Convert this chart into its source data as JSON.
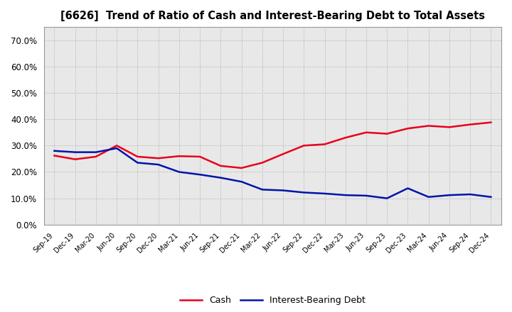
{
  "title": "[6626]  Trend of Ratio of Cash and Interest-Bearing Debt to Total Assets",
  "x_labels": [
    "Sep-19",
    "Dec-19",
    "Mar-20",
    "Jun-20",
    "Sep-20",
    "Dec-20",
    "Mar-21",
    "Jun-21",
    "Sep-21",
    "Dec-21",
    "Mar-22",
    "Jun-22",
    "Sep-22",
    "Dec-22",
    "Mar-23",
    "Jun-23",
    "Sep-23",
    "Dec-23",
    "Mar-24",
    "Jun-24",
    "Sep-24",
    "Dec-24"
  ],
  "cash": [
    0.262,
    0.248,
    0.258,
    0.3,
    0.258,
    0.252,
    0.26,
    0.258,
    0.223,
    0.215,
    0.235,
    0.268,
    0.3,
    0.305,
    0.33,
    0.35,
    0.345,
    0.365,
    0.375,
    0.37,
    0.38,
    0.388
  ],
  "debt": [
    0.28,
    0.275,
    0.275,
    0.29,
    0.235,
    0.228,
    0.2,
    0.19,
    0.178,
    0.163,
    0.133,
    0.13,
    0.122,
    0.118,
    0.112,
    0.11,
    0.1,
    0.138,
    0.105,
    0.112,
    0.115,
    0.105
  ],
  "cash_color": "#e8001c",
  "debt_color": "#0014a8",
  "ylim": [
    0.0,
    0.75
  ],
  "yticks": [
    0.0,
    0.1,
    0.2,
    0.3,
    0.4,
    0.5,
    0.6,
    0.7
  ],
  "ytick_labels": [
    "0.0%",
    "10.0%",
    "20.0%",
    "30.0%",
    "40.0%",
    "50.0%",
    "60.0%",
    "70.0%"
  ],
  "grid_color": "#aaaaaa",
  "background_color": "#ffffff",
  "plot_bg_color": "#e8e8e8",
  "legend_cash": "Cash",
  "legend_debt": "Interest-Bearing Debt",
  "line_width": 1.8
}
